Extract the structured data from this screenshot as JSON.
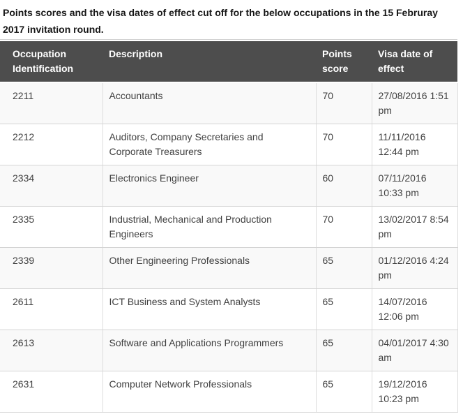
{
  "intro": {
    "text": "Points scores and the visa dates of effect cut off for the below occupations in the 15 Februray 2017 invitation round."
  },
  "table": {
    "columns": {
      "occupation_id": "Occupation Identification",
      "description": "Description",
      "points_score": "Points score",
      "visa_date": "Visa date of effect"
    },
    "rows": [
      {
        "occupation_id": "2211",
        "description": "Accountants",
        "points_score": "70",
        "visa_date": "27/08/2016 1:51 pm"
      },
      {
        "occupation_id": "2212",
        "description": "Auditors, Company Secretaries and Corporate Treasurers",
        "points_score": "70",
        "visa_date": "11/11/2016 12:44 pm"
      },
      {
        "occupation_id": "2334",
        "description": "Electronics Engineer",
        "points_score": "60",
        "visa_date": "07/11/2016 10:33 pm"
      },
      {
        "occupation_id": "2335",
        "description": "Industrial, Mechanical and Production Engineers",
        "points_score": "70",
        "visa_date": "13/02/2017 8:54 pm"
      },
      {
        "occupation_id": "2339",
        "description": "Other Engineering Professionals",
        "points_score": "65",
        "visa_date": "01/12/2016 4:24 pm"
      },
      {
        "occupation_id": "2611",
        "description": "ICT Business and System Analysts",
        "points_score": "65",
        "visa_date": "14/07/2016 12:06 pm"
      },
      {
        "occupation_id": "2613",
        "description": "Software and Applications Programmers",
        "points_score": "65",
        "visa_date": "04/01/2017 4:30 am"
      },
      {
        "occupation_id": "2631",
        "description": "Computer Network Professionals",
        "points_score": "65",
        "visa_date": "19/12/2016 10:23 pm"
      }
    ]
  },
  "colors": {
    "header_bg": "#4d4d4d",
    "header_text": "#ffffff",
    "row_alt_bg": "#f9f9f9",
    "row_bg": "#ffffff",
    "border": "#d4d4d4",
    "body_text": "#404040",
    "intro_text": "#161616"
  }
}
